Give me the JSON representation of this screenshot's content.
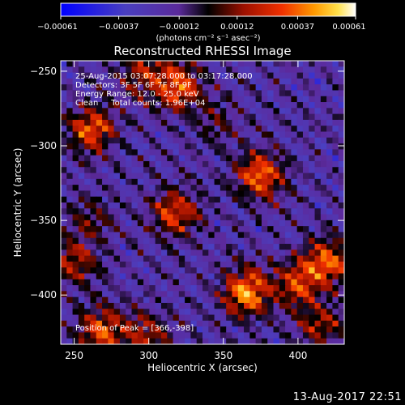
{
  "chart_data": {
    "type": "heatmap",
    "title": "Reconstructed RHESSI Image",
    "xlabel": "Heliocentric X (arcsec)",
    "ylabel": "Heliocentric Y (arcsec)",
    "xlim": [
      241,
      431
    ],
    "ylim": [
      -433,
      -243
    ],
    "x_ticks": [
      250,
      300,
      350,
      400
    ],
    "y_ticks": [
      -250,
      -300,
      -350,
      -400
    ],
    "x_tick_labels": [
      "250",
      "300",
      "350",
      "400"
    ],
    "y_tick_labels": [
      "−250",
      "−300",
      "−350",
      "−400"
    ],
    "colorbar": {
      "min": -0.00061,
      "max": 0.00061,
      "ticks": [
        -0.00061,
        -0.00037,
        -0.00012,
        0.00012,
        0.00037,
        0.00061
      ],
      "tick_labels": [
        "−0.00061",
        "−0.00037",
        "−0.00012",
        "0.00012",
        "0.00037",
        "0.00061"
      ],
      "unit_label": "(photons cm⁻² s⁻¹ asec⁻²)"
    },
    "sources": [
      {
        "x": 318,
        "y": -345,
        "intensity": 0.00044
      },
      {
        "x": 366,
        "y": -398,
        "intensity": 0.00061
      },
      {
        "x": 375,
        "y": -320,
        "intensity": 0.00053
      },
      {
        "x": 320,
        "y": -260,
        "intensity": 0.00049
      },
      {
        "x": 262,
        "y": -289,
        "intensity": 0.00049
      },
      {
        "x": 296,
        "y": -252,
        "intensity": 0.00031
      },
      {
        "x": 268,
        "y": -424,
        "intensity": 0.00046
      },
      {
        "x": 298,
        "y": -427,
        "intensity": 0.00031
      },
      {
        "x": 420,
        "y": -378,
        "intensity": 0.00049
      },
      {
        "x": 400,
        "y": -392,
        "intensity": 0.00039
      },
      {
        "x": 415,
        "y": -420,
        "intensity": 0.00031
      },
      {
        "x": 250,
        "y": -378,
        "intensity": 0.00034
      },
      {
        "x": 262,
        "y": -348,
        "intensity": 0.00022
      },
      {
        "x": 345,
        "y": -285,
        "intensity": 0.00017
      }
    ],
    "annotations": [
      "25-Aug-2015 03:07:28.000 to 03:17:28.000",
      "Detectors: 3F 5F 6F 7F 8F 9F",
      "Energy Range: 12.0 - 25.0 keV",
      "Clean     Total counts: 1.96E+04"
    ],
    "peak_label": "Position of Peak = [366,-398]"
  },
  "footer_date": "13-Aug-2017 22:51"
}
